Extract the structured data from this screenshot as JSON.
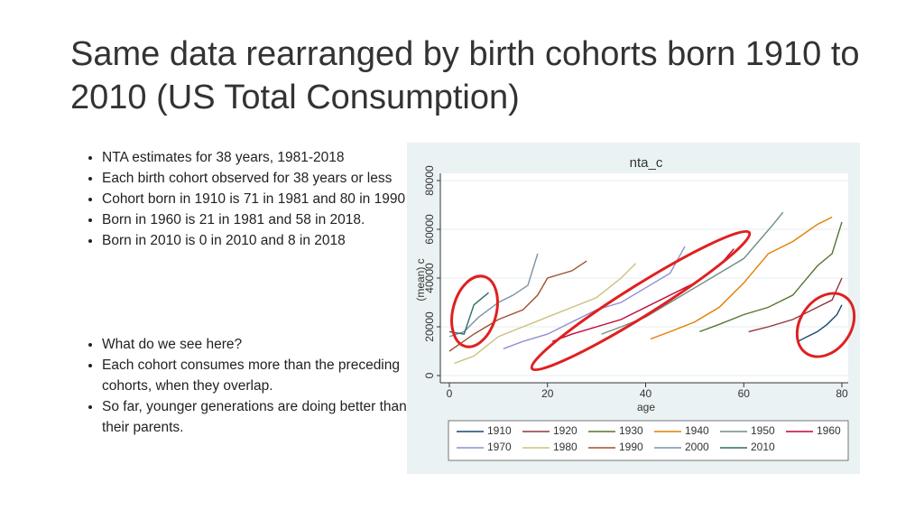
{
  "header": {
    "title": "Same data rearranged by birth cohorts born 1910 to 2010 (US Total Consumption)"
  },
  "bullet_groups": [
    [
      "NTA estimates for 38 years, 1981-2018",
      "Each birth cohort observed for 38 years or less",
      "Cohort born in 1910 is 71 in 1981 and 80 in 1990",
      "Born in 1960 is 21 in 1981 and 58 in 2018.",
      "Born in 2010 is 0 in 2010 and 8 in 2018"
    ],
    [
      "What do we see here?",
      "Each cohort consumes more than the preceding cohorts, when they overlap.",
      "So far, younger generations are doing better than their parents."
    ]
  ],
  "chart_data": {
    "type": "line",
    "title": "nta_c",
    "x_label": "age",
    "y_label": "(mean) c",
    "xlim": [
      0,
      80
    ],
    "xticks": [
      0,
      20,
      40,
      60,
      80
    ],
    "ylim": [
      0,
      80000
    ],
    "yticks": [
      0,
      20000,
      40000,
      60000,
      80000
    ],
    "grid": true,
    "legend": "bottom",
    "series": [
      {
        "name": "1910",
        "color": "#1a476f",
        "x": [
          71,
          73,
          75,
          77,
          79,
          80
        ],
        "values": [
          14000,
          16000,
          18000,
          21000,
          25000,
          29000
        ]
      },
      {
        "name": "1920",
        "color": "#90353b",
        "x": [
          61,
          65,
          70,
          75,
          78,
          80
        ],
        "values": [
          18000,
          20000,
          23000,
          28000,
          31000,
          40000
        ]
      },
      {
        "name": "1930",
        "color": "#55752f",
        "x": [
          51,
          55,
          60,
          65,
          70,
          75,
          78,
          80
        ],
        "values": [
          18000,
          21000,
          25000,
          28000,
          33000,
          45000,
          50000,
          63000
        ]
      },
      {
        "name": "1940",
        "color": "#e37e00",
        "x": [
          41,
          45,
          50,
          55,
          60,
          65,
          70,
          75,
          78
        ],
        "values": [
          15000,
          18000,
          22000,
          28000,
          38000,
          50000,
          55000,
          62000,
          65000
        ]
      },
      {
        "name": "1950",
        "color": "#6e8e84",
        "x": [
          31,
          35,
          40,
          45,
          50,
          55,
          60,
          63,
          66,
          68
        ],
        "values": [
          17000,
          20000,
          24000,
          30000,
          36000,
          42000,
          48000,
          55000,
          62000,
          67000
        ]
      },
      {
        "name": "1960",
        "color": "#c10534",
        "x": [
          21,
          25,
          30,
          35,
          40,
          45,
          50,
          55,
          58
        ],
        "values": [
          14000,
          17000,
          20000,
          23000,
          28000,
          33000,
          38000,
          45000,
          52000
        ]
      },
      {
        "name": "1970",
        "color": "#938dd2",
        "x": [
          11,
          15,
          20,
          25,
          30,
          35,
          40,
          45,
          48
        ],
        "values": [
          11000,
          14000,
          17000,
          22000,
          27000,
          30000,
          36000,
          42000,
          53000
        ]
      },
      {
        "name": "1980",
        "color": "#cac27e",
        "x": [
          1,
          5,
          10,
          15,
          20,
          25,
          30,
          35,
          38
        ],
        "values": [
          5000,
          8000,
          16000,
          20000,
          24000,
          28000,
          32000,
          40000,
          46000
        ]
      },
      {
        "name": "1990",
        "color": "#a0522d",
        "x": [
          0,
          5,
          10,
          15,
          18,
          20,
          25,
          28
        ],
        "values": [
          10000,
          17000,
          23000,
          27000,
          33000,
          40000,
          43000,
          47000
        ]
      },
      {
        "name": "2000",
        "color": "#7b92a8",
        "x": [
          0,
          3,
          6,
          10,
          13,
          16,
          18
        ],
        "values": [
          16000,
          18000,
          24000,
          30000,
          33000,
          37000,
          50000
        ]
      },
      {
        "name": "2010",
        "color": "#2d6d66",
        "x": [
          0,
          3,
          5,
          8
        ],
        "values": [
          18000,
          17000,
          29000,
          34000
        ]
      }
    ]
  }
}
